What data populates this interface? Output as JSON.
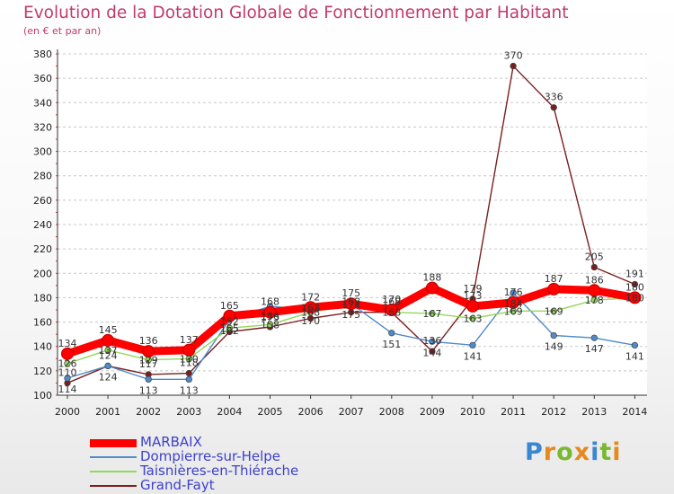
{
  "title": "Evolution de la Dotation Globale de Fonctionnement par Habitant",
  "subtitle": "(en € et par an)",
  "logo": {
    "text": "Proxiti"
  },
  "chart_data": {
    "type": "line",
    "x": [
      "2000",
      "2001",
      "2002",
      "2003",
      "2004",
      "2005",
      "2006",
      "2007",
      "2008",
      "2009",
      "2010",
      "2011",
      "2012",
      "2013",
      "2014"
    ],
    "ylim": [
      100,
      380
    ],
    "yticks": [
      100,
      120,
      140,
      160,
      180,
      200,
      220,
      240,
      260,
      280,
      300,
      320,
      340,
      360,
      380
    ],
    "grid": "horizontal dashed",
    "legend_position": "bottom-left",
    "series": [
      {
        "name": "MARBAIX",
        "color": "#ff0000",
        "values": [
          134,
          145,
          136,
          137,
          165,
          168,
          172,
          175,
          170,
          188,
          173,
          176,
          187,
          186,
          180
        ],
        "labels": [
          "134",
          "145",
          "136",
          "137",
          "165",
          "168",
          "172",
          "175",
          "170",
          "188",
          "173",
          "176",
          "187",
          "186",
          "180"
        ]
      },
      {
        "name": "Dompierre-sur-Helpe",
        "color": "#4f8ac9",
        "values": [
          114,
          124,
          113,
          113,
          162,
          173,
          170,
          175,
          151,
          144,
          141,
          184,
          149,
          147,
          141
        ],
        "labels": [
          "114",
          "124",
          "113",
          "113",
          "162",
          "173",
          "170",
          "175",
          "151",
          "144",
          "141",
          "184",
          "149",
          "147",
          "141"
        ]
      },
      {
        "name": "Taisnières-en-Thiérache",
        "color": "#93d85a",
        "values": [
          126,
          137,
          129,
          130,
          155,
          158,
          168,
          174,
          168,
          167,
          163,
          169,
          169,
          178,
          180
        ],
        "labels": [
          "126",
          "137",
          "129",
          "130",
          "155",
          "158",
          "168",
          "174",
          "168",
          "167",
          "163",
          "169",
          "169",
          "178",
          "180"
        ]
      },
      {
        "name": "Grand-Fayt",
        "color": "#7a1f1f",
        "values": [
          110,
          124,
          117,
          118,
          152,
          156,
          163,
          168,
          168,
          136,
          179,
          370,
          336,
          205,
          191
        ],
        "labels": [
          "110",
          "124",
          "117",
          "118",
          "152",
          "156",
          "163",
          "168",
          "168",
          "136",
          "179",
          "370",
          "336",
          "205",
          "191"
        ]
      }
    ]
  }
}
